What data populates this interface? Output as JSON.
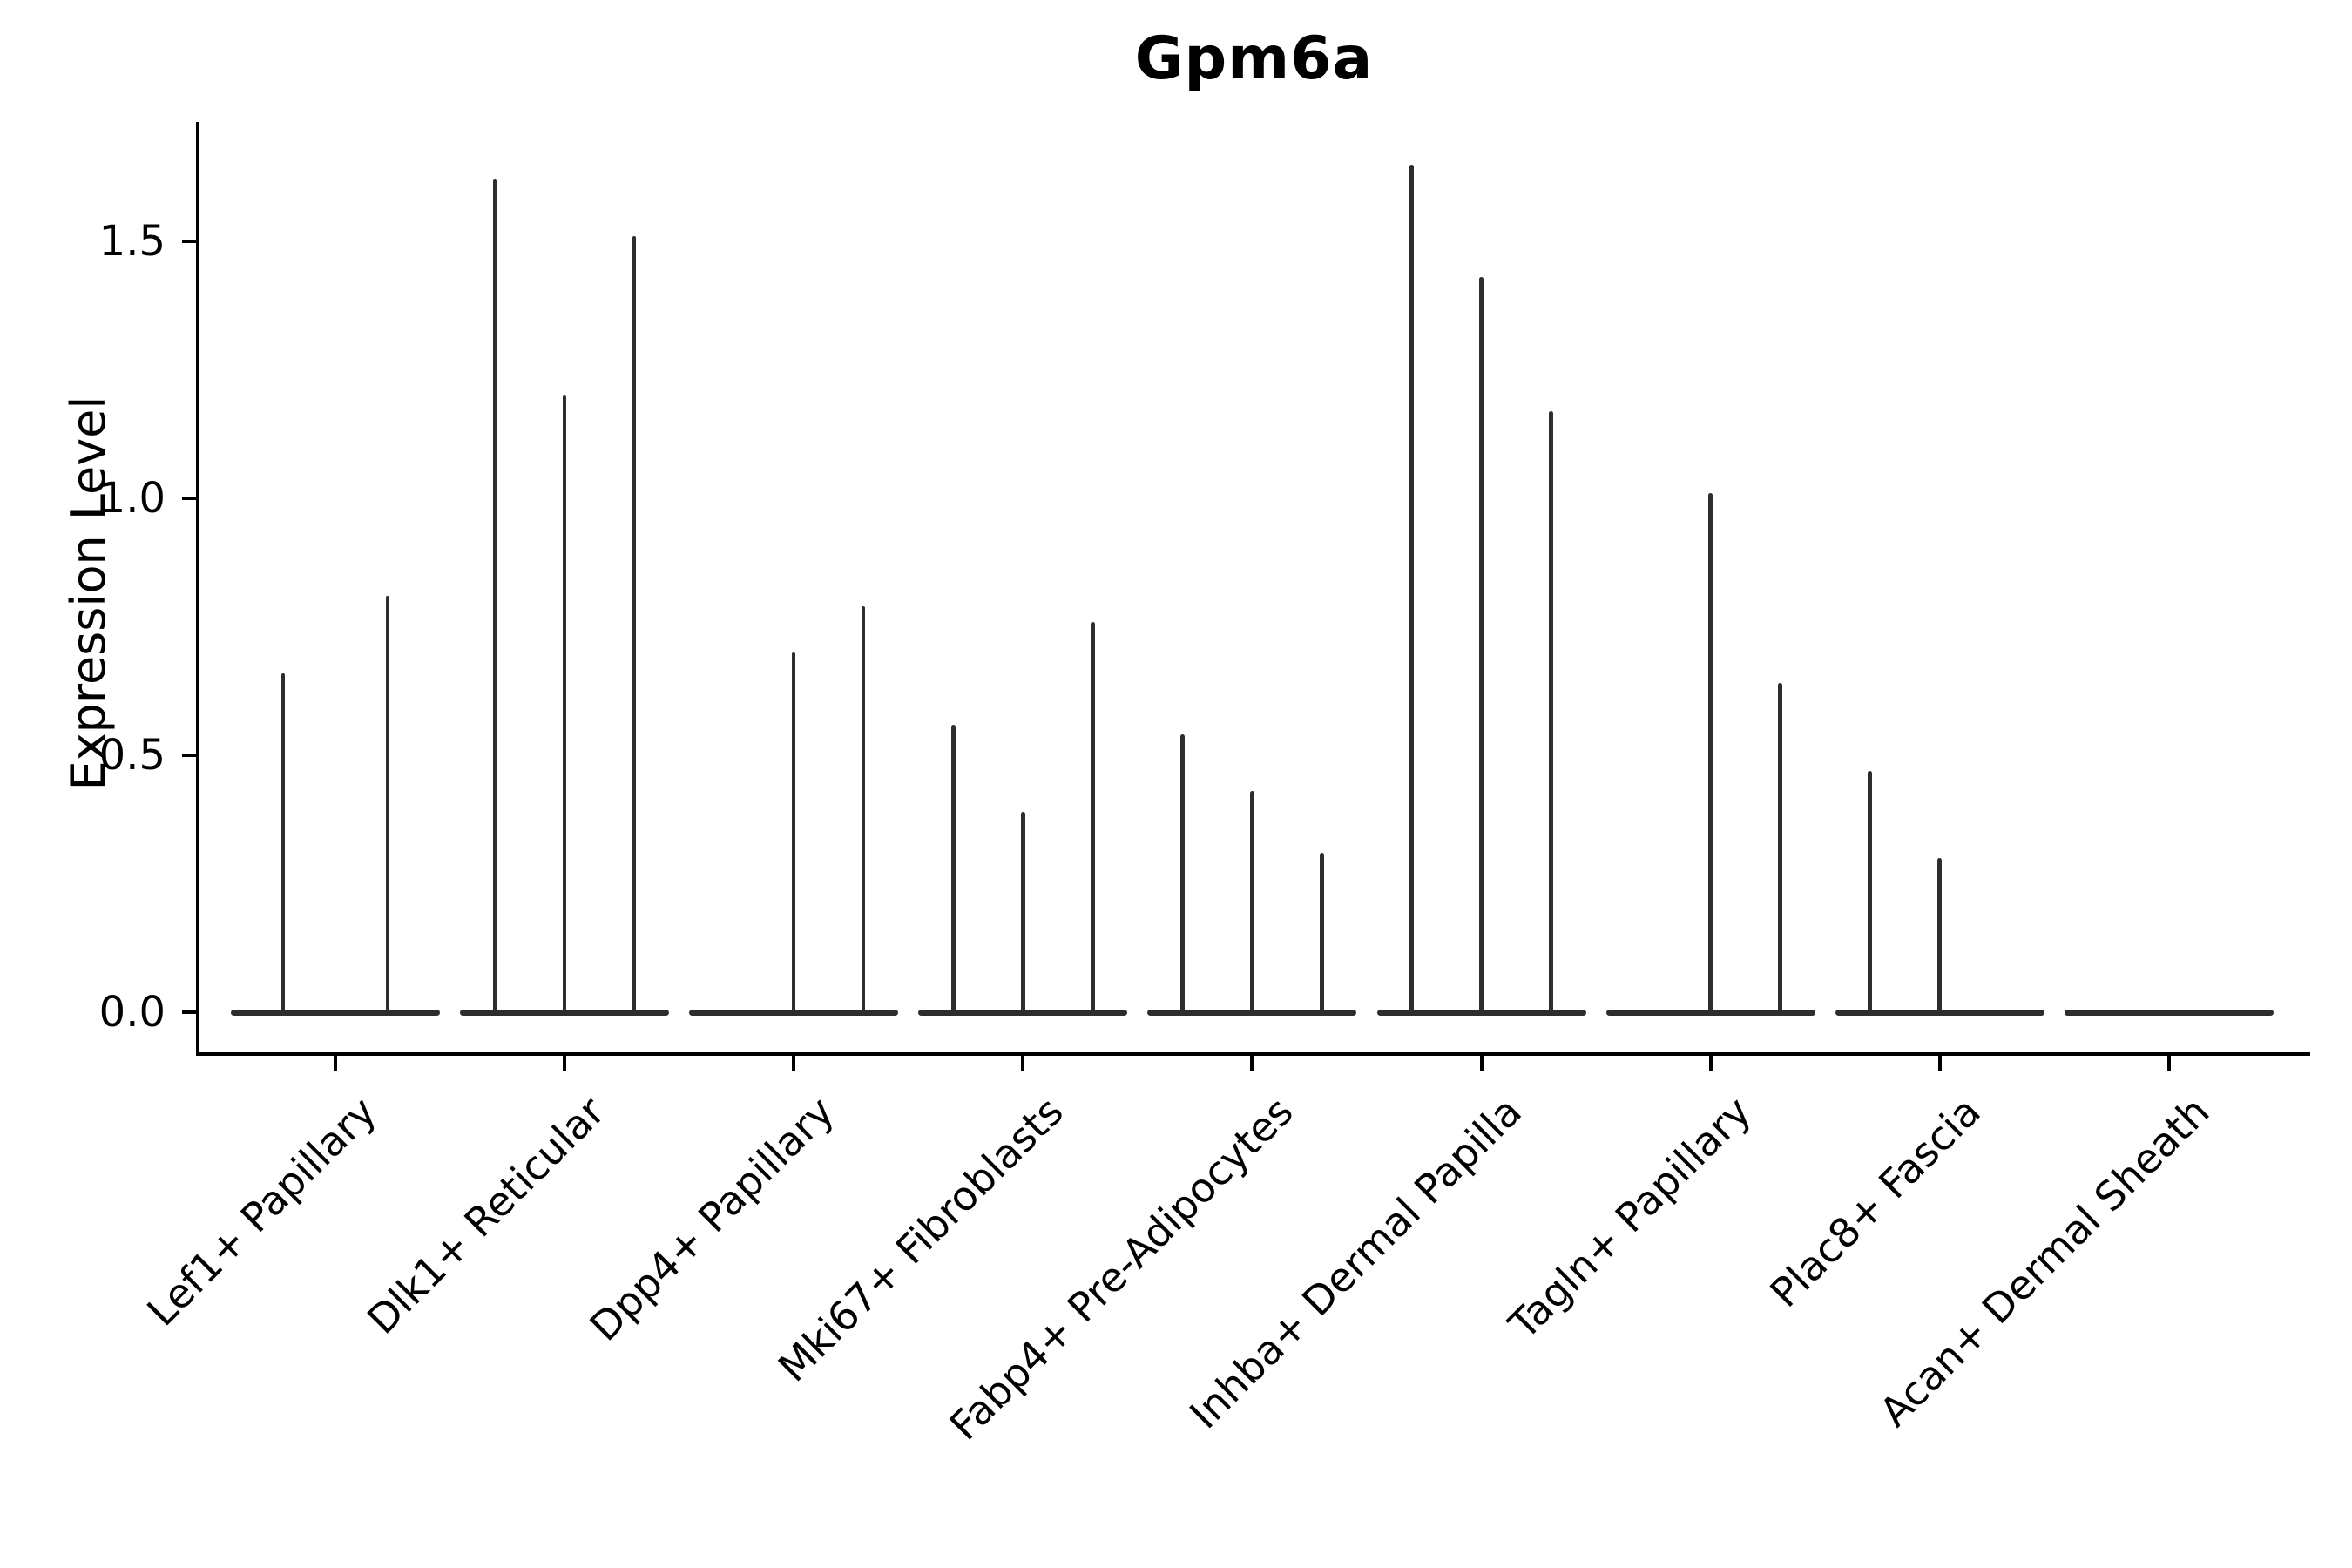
{
  "chart_data": {
    "type": "violin",
    "title": "Gpm6a",
    "xlabel": "",
    "ylabel": "Expression Level",
    "ylim": [
      0,
      1.73
    ],
    "yticks": [
      "0.0",
      "0.5",
      "1.0",
      "1.5"
    ],
    "ytick_values": [
      0.0,
      0.5,
      1.0,
      1.5
    ],
    "grid": "off",
    "legend": "none",
    "violin_color": "#2d2d2d",
    "axis_color": "#000000",
    "note": "Each category shows 2-3 thin spike violins; value = max expression of each violin, 0 = flat violin at baseline",
    "categories": [
      {
        "label": "Lef1+ Papillary",
        "violins": [
          0.66,
          0.81
        ]
      },
      {
        "label": "Dlk1+ Reticular",
        "violins": [
          1.62,
          1.2,
          1.51
        ]
      },
      {
        "label": "Dpp4+ Papillary",
        "violins": [
          0,
          0.7,
          0.79
        ]
      },
      {
        "label": "Mki67+ Fibroblasts",
        "violins": [
          0.56,
          0.39,
          0.76
        ]
      },
      {
        "label": "Fabp4+ Pre-Adipocytes",
        "violins": [
          0.54,
          0.43,
          0.31
        ]
      },
      {
        "label": "Inhba+ Dermal Papilla",
        "violins": [
          1.65,
          1.43,
          1.17
        ]
      },
      {
        "label": "Tagln+ Papillary",
        "violins": [
          0,
          1.01,
          0.64
        ]
      },
      {
        "label": "Plac8+ Fascia",
        "violins": [
          0.47,
          0.3,
          0
        ]
      },
      {
        "label": "Acan+ Dermal Sheath",
        "violins": [
          0,
          0,
          0
        ]
      }
    ]
  }
}
